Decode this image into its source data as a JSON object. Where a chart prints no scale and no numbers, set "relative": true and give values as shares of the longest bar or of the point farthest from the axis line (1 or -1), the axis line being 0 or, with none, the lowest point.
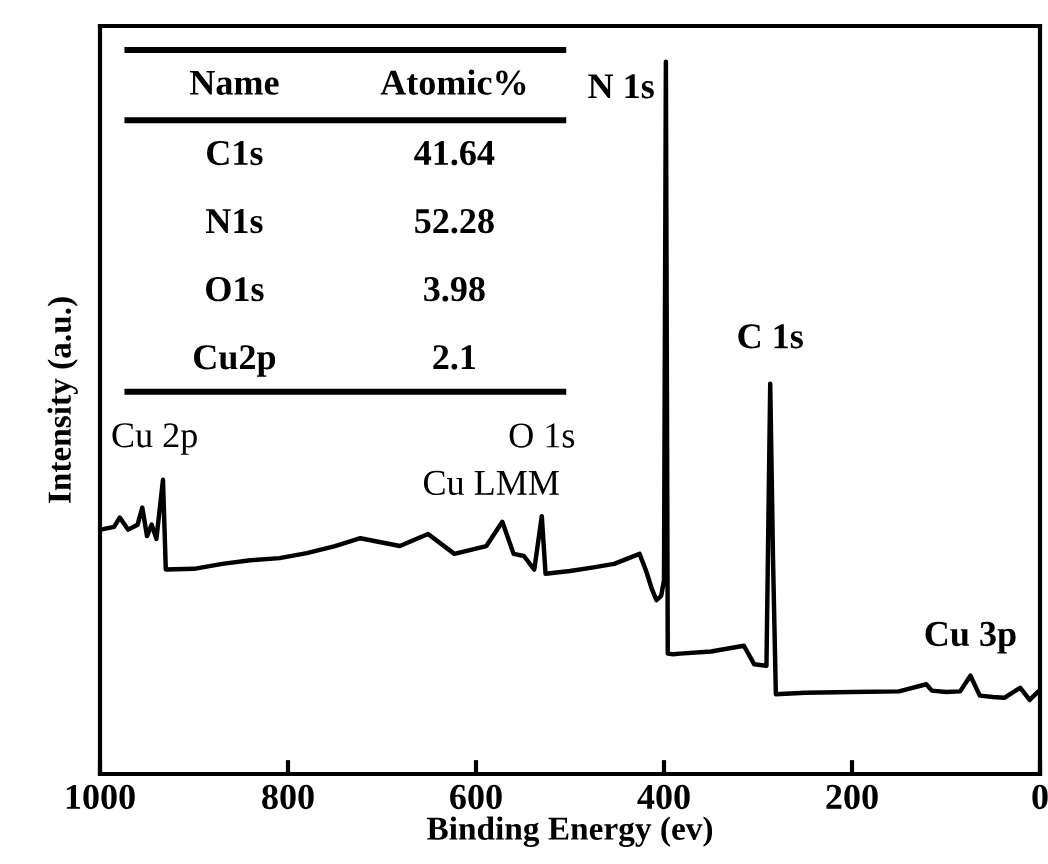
{
  "chart_data": {
    "type": "line",
    "relative": true,
    "xlabel": "Binding Energy (ev)",
    "ylabel": "Intensity (a.u.)",
    "xlim": [
      1000,
      0
    ],
    "xticks": [
      1000,
      800,
      600,
      400,
      200,
      0
    ],
    "tick_labels": "x",
    "grid": false,
    "legend": false,
    "marker": "none",
    "line_style": "solid",
    "series": [
      {
        "color": "#000000",
        "x": [
          1000,
          985,
          979,
          970,
          960,
          955,
          950,
          945,
          940,
          933,
          930,
          900,
          870,
          840,
          809,
          780,
          750,
          723,
          700,
          681,
          651,
          623,
          589,
          572,
          560,
          549,
          538,
          530,
          526,
          500,
          475,
          453,
          426,
          419,
          413,
          408,
          403,
          400,
          398,
          396,
          390,
          383,
          350,
          315,
          304,
          291,
          287,
          284,
          281,
          250,
          200,
          150,
          121,
          115,
          100,
          85,
          74,
          64,
          50,
          38,
          21,
          11,
          0
        ],
        "values": [
          0.343,
          0.347,
          0.36,
          0.343,
          0.35,
          0.374,
          0.334,
          0.35,
          0.33,
          0.413,
          0.287,
          0.288,
          0.295,
          0.3,
          0.303,
          0.31,
          0.32,
          0.331,
          0.325,
          0.32,
          0.337,
          0.309,
          0.32,
          0.354,
          0.309,
          0.306,
          0.287,
          0.362,
          0.281,
          0.285,
          0.29,
          0.295,
          0.309,
          0.285,
          0.26,
          0.244,
          0.25,
          0.272,
          1.0,
          0.169,
          0.168,
          0.169,
          0.172,
          0.18,
          0.154,
          0.152,
          0.548,
          0.3,
          0.112,
          0.114,
          0.115,
          0.116,
          0.126,
          0.117,
          0.115,
          0.116,
          0.138,
          0.11,
          0.108,
          0.107,
          0.121,
          0.104,
          0.118
        ]
      }
    ],
    "annotations": [
      {
        "text": "N 1s",
        "x": 398,
        "y": 1.0
      },
      {
        "text": "C 1s",
        "x": 287,
        "y": 0.548
      },
      {
        "text": "Cu 3p",
        "x": 74,
        "y": 0.138
      },
      {
        "text": "O 1s",
        "x": 530,
        "y": 0.362
      },
      {
        "text": "Cu LMM",
        "x": 572,
        "y": 0.354
      },
      {
        "text": "Cu 2p",
        "x": 933,
        "y": 0.413
      },
      "Name",
      "Atomic%",
      "C1s",
      "41.64",
      "N1s",
      "52.28",
      "O1s",
      "3.98",
      "Cu2p",
      "2.1"
    ]
  }
}
